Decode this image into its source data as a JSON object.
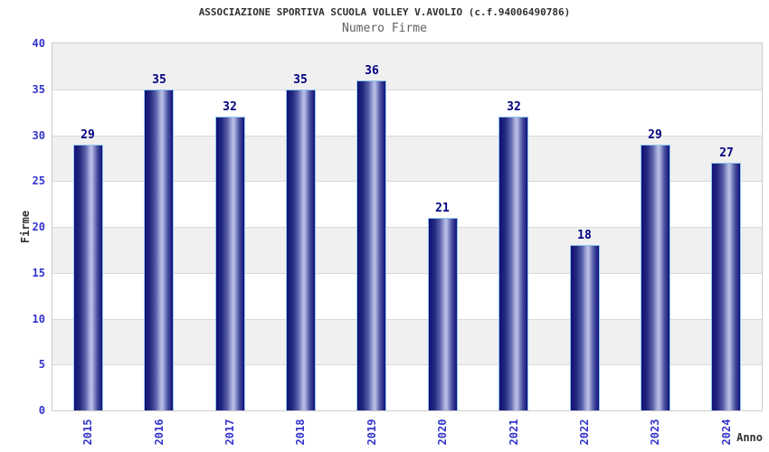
{
  "header": {
    "title": "ASSOCIAZIONE SPORTIVA SCUOLA VOLLEY V.AVOLIO (c.f.94006490786)",
    "subtitle": "Numero Firme"
  },
  "chart_data": {
    "type": "bar",
    "title": "ASSOCIAZIONE SPORTIVA SCUOLA VOLLEY V.AVOLIO (c.f.94006490786)",
    "subtitle": "Numero Firme",
    "xlabel": "Anno",
    "ylabel": "Firme",
    "categories": [
      "2015",
      "2016",
      "2017",
      "2018",
      "2019",
      "2020",
      "2021",
      "2022",
      "2023",
      "2024"
    ],
    "values": [
      29,
      35,
      32,
      35,
      36,
      21,
      32,
      18,
      29,
      27
    ],
    "ylim": [
      0,
      40
    ],
    "yticks": [
      0,
      5,
      10,
      15,
      20,
      25,
      30,
      35,
      40
    ],
    "grid": "horizontal alternating bands every 5 units, gray band at top",
    "legend": "none",
    "colors": {
      "bar_dark": "#101078",
      "bar_mid": "#4a51a0",
      "bar_light": "#bcc1e8",
      "bar_border": "#8ec6ee",
      "value_label": "#000080",
      "tick_label": "#3333cc",
      "band_gray": "#f0f0f0",
      "band_white": "#ffffff",
      "gridline": "#d8d8d8",
      "plot_border": "#cccccc",
      "title_color": "#303030",
      "subtitle_color": "#606060"
    }
  }
}
